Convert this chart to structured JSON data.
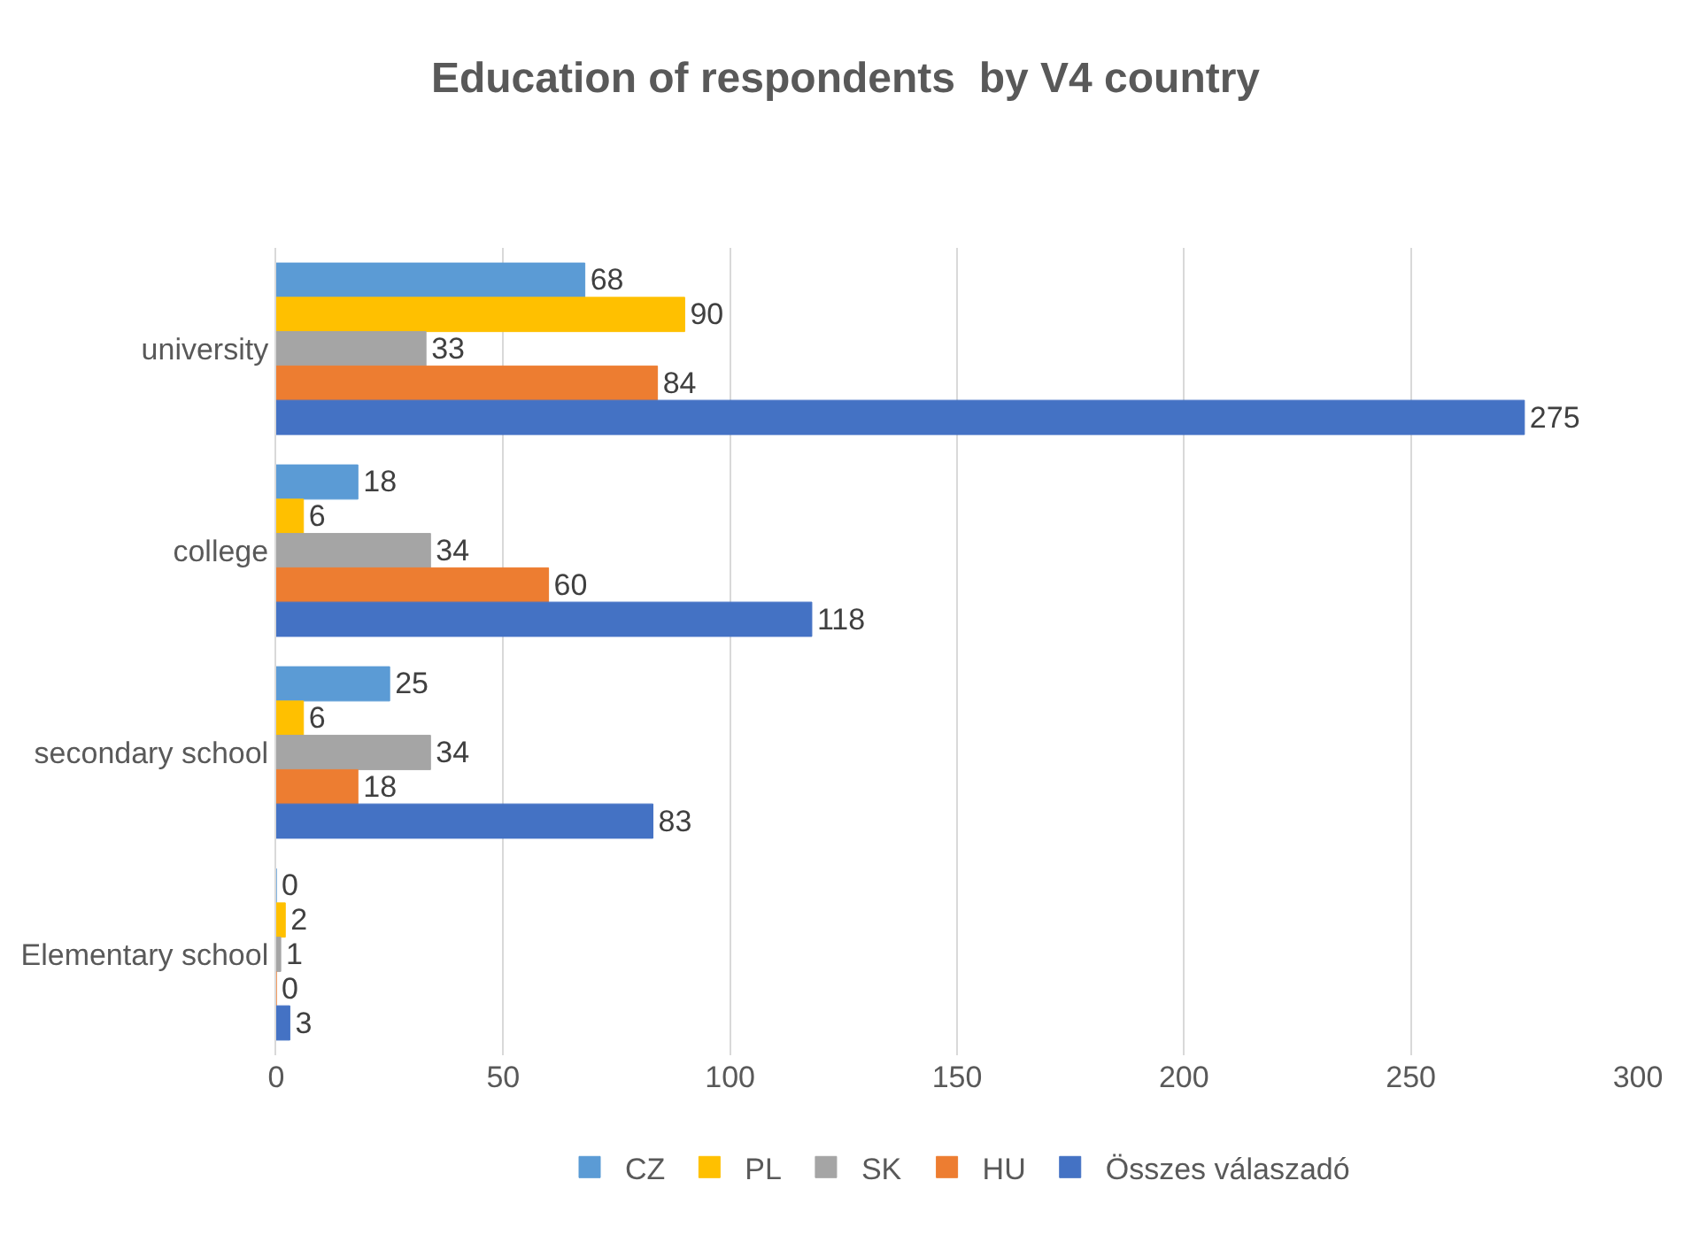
{
  "chart_data": {
    "type": "bar",
    "orientation": "horizontal",
    "title": "Education of respondents  by V4 country",
    "categories": [
      "university",
      "college",
      "secondary school",
      "Elementary school"
    ],
    "series": [
      {
        "name": "CZ",
        "color": "#5b9bd5",
        "values": [
          68,
          18,
          25,
          0
        ]
      },
      {
        "name": "PL",
        "color": "#ffc000",
        "values": [
          90,
          6,
          6,
          2
        ]
      },
      {
        "name": "SK",
        "color": "#a5a5a5",
        "values": [
          33,
          34,
          34,
          1
        ]
      },
      {
        "name": "HU",
        "color": "#ed7d31",
        "values": [
          84,
          60,
          18,
          0
        ]
      },
      {
        "name": "Összes válaszadó",
        "color": "#4472c4",
        "values": [
          275,
          118,
          83,
          3
        ]
      }
    ],
    "xlim": [
      0,
      300
    ],
    "xticks": [
      0,
      50,
      100,
      150,
      200,
      250,
      300
    ],
    "grid": "x",
    "legend": "bottom",
    "data_labels": true
  }
}
